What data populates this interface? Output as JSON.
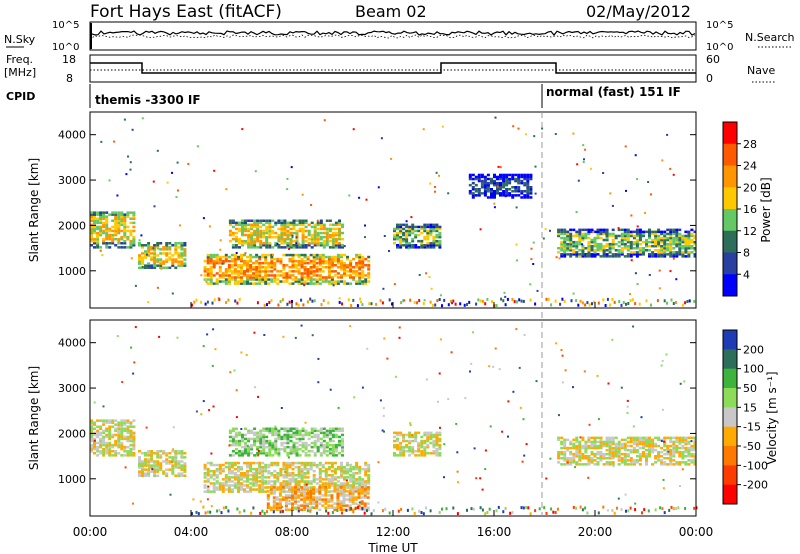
{
  "header": {
    "station": "Fort Hays East (fitACF)",
    "beam": "Beam 02",
    "date": "02/May/2012"
  },
  "top_panels": {
    "nsky_label": "N.Sky",
    "nsearch_label": "N.Search",
    "noise_ticks": [
      "10^5",
      "10^0"
    ],
    "freq_label_line1": "Freq.",
    "freq_label_line2": "[MHz]",
    "freq_ticks": [
      "18",
      "8"
    ],
    "nave_label": "Nave",
    "nave_ticks": [
      "60",
      "0"
    ],
    "cpid_label": "CPID",
    "cpid_modes": [
      {
        "text": "themis -3300 IF",
        "start_hour": 0
      },
      {
        "text": "normal (fast) 151 IF",
        "start_hour": 18
      }
    ]
  },
  "chart_data": [
    {
      "type": "heatmap",
      "panel": "power",
      "ylabel": "Slant Range [km]",
      "ylim": [
        180,
        4500
      ],
      "yticks": [
        "1000",
        "2000",
        "3000",
        "4000"
      ],
      "xlim_hours": [
        0,
        24
      ],
      "colorbar": {
        "label": "Power [dB]",
        "ticks": [
          "28",
          "24",
          "20",
          "16",
          "12",
          "8",
          "4"
        ],
        "colors": [
          "#ff0000",
          "#ff5a00",
          "#ff9600",
          "#ffc800",
          "#64c864",
          "#2d6e5a",
          "#2840a0",
          "#0000ff"
        ]
      },
      "bands": [
        {
          "t0": 0.0,
          "t1": 1.8,
          "r0": 1500,
          "r1": 2300,
          "level": 4
        },
        {
          "t0": 1.9,
          "t1": 3.8,
          "r0": 1050,
          "r1": 1600,
          "level": 4
        },
        {
          "t0": 4.5,
          "t1": 11.0,
          "r0": 700,
          "r1": 1350,
          "level": 5
        },
        {
          "t0": 5.5,
          "t1": 10.0,
          "r0": 1500,
          "r1": 2100,
          "level": 4
        },
        {
          "t0": 12.0,
          "t1": 13.8,
          "r0": 1500,
          "r1": 2000,
          "level": 3
        },
        {
          "t0": 18.5,
          "t1": 24.0,
          "r0": 1300,
          "r1": 1900,
          "level": 3
        },
        {
          "t0": 15.0,
          "t1": 17.5,
          "r0": 2600,
          "r1": 3100,
          "level": 1
        }
      ]
    },
    {
      "type": "heatmap",
      "panel": "velocity",
      "ylabel": "Slant Range [km]",
      "ylim": [
        180,
        4500
      ],
      "yticks": [
        "1000",
        "2000",
        "3000",
        "4000"
      ],
      "xlim_hours": [
        0,
        24
      ],
      "xticks": [
        "00:00",
        "04:00",
        "08:00",
        "12:00",
        "16:00",
        "20:00",
        "00:00"
      ],
      "xlabel": "Time UT",
      "colorbar": {
        "label": "Velocity [m s⁻¹]",
        "ticks": [
          "200",
          "100",
          "50",
          "15",
          "-15",
          "-50",
          "-100",
          "-200"
        ],
        "colors": [
          "#1e3cb4",
          "#2d6e5a",
          "#3cb43c",
          "#8cdc5a",
          "#c8c8c8",
          "#ffaa00",
          "#ff7800",
          "#ff3c00",
          "#ff0000"
        ]
      },
      "bands": [
        {
          "t0": 0.0,
          "t1": 1.8,
          "r0": 1500,
          "r1": 2300,
          "level": 4
        },
        {
          "t0": 1.9,
          "t1": 3.8,
          "r0": 1050,
          "r1": 1600,
          "level": 4
        },
        {
          "t0": 4.5,
          "t1": 11.0,
          "r0": 700,
          "r1": 1350,
          "level": 4
        },
        {
          "t0": 5.5,
          "t1": 10.0,
          "r0": 1500,
          "r1": 2100,
          "level": 3
        },
        {
          "t0": 12.0,
          "t1": 13.8,
          "r0": 1500,
          "r1": 2000,
          "level": 4
        },
        {
          "t0": 18.5,
          "t1": 24.0,
          "r0": 1300,
          "r1": 1900,
          "level": 4
        },
        {
          "t0": 7.0,
          "t1": 11.0,
          "r0": 300,
          "r1": 800,
          "level": 5
        }
      ]
    }
  ]
}
